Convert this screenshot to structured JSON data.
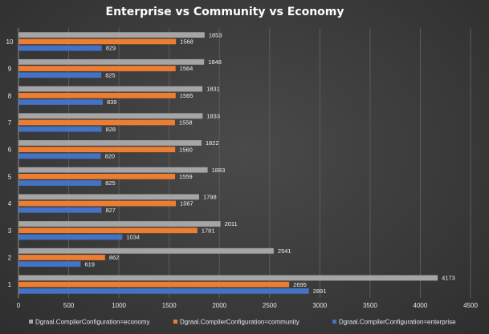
{
  "chart_data": {
    "type": "bar",
    "orientation": "horizontal",
    "title": "Enterprise vs Community vs Economy",
    "xlabel": "",
    "ylabel": "",
    "xlim": [
      0,
      4500
    ],
    "x_ticks": [
      0,
      500,
      1000,
      1500,
      2000,
      2500,
      3000,
      3500,
      4000,
      4500
    ],
    "grid": true,
    "legend_position": "bottom",
    "categories": [
      "1",
      "2",
      "3",
      "4",
      "5",
      "6",
      "7",
      "8",
      "9",
      "10"
    ],
    "series": [
      {
        "name": "Dgraal.CompilerConfiguration=economy",
        "color": "#a5a5a5",
        "values": [
          4173,
          2541,
          2011,
          1798,
          1883,
          1822,
          1833,
          1831,
          1848,
          1853
        ]
      },
      {
        "name": "Dgraal.CompilerConfiguration=community",
        "color": "#ed7d31",
        "values": [
          2695,
          862,
          1781,
          1567,
          1559,
          1560,
          1558,
          1565,
          1564,
          1568
        ]
      },
      {
        "name": "Dgraal.CompilerConfiguration=enterprise",
        "color": "#4472c4",
        "values": [
          2891,
          619,
          1034,
          827,
          825,
          820,
          828,
          839,
          825,
          829
        ]
      }
    ]
  }
}
